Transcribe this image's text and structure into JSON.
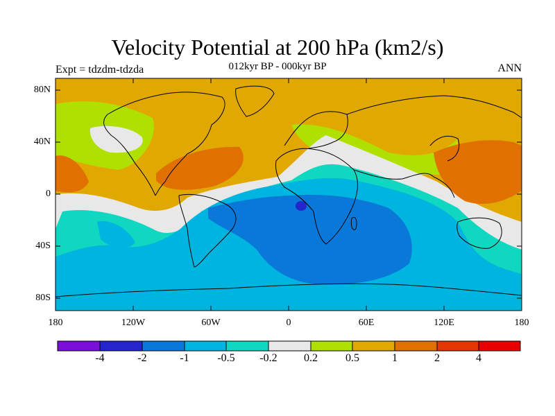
{
  "title": "Velocity Potential at 200 hPa (km2/s)",
  "subtitle": "012kyr BP - 000kyr BP",
  "left_label": "Expt = tdzdm-tdzda",
  "right_label": "ANN",
  "map": {
    "projection": "cylindrical equidistant",
    "lat_ticks": [
      "80N",
      "40N",
      "0",
      "40S",
      "80S"
    ],
    "lon_ticks": [
      "180",
      "120W",
      "60W",
      "0",
      "60E",
      "120E",
      "180"
    ],
    "field_summary": "Negative values (blue) over South Atlantic, Africa and Indian Ocean; positive values (orange) over North Pacific, western Pacific and East Asia"
  },
  "colorbar": {
    "colors": [
      "#7a10d8",
      "#2525cc",
      "#0a78d8",
      "#00b4e0",
      "#10d8c0",
      "#e8e8e8",
      "#b0e000",
      "#e0a800",
      "#e07000",
      "#e03800",
      "#e80000"
    ],
    "labels": [
      "-4",
      "-2",
      "-1",
      "-0.5",
      "-0.2",
      "0.2",
      "0.5",
      "1",
      "2",
      "4"
    ]
  }
}
